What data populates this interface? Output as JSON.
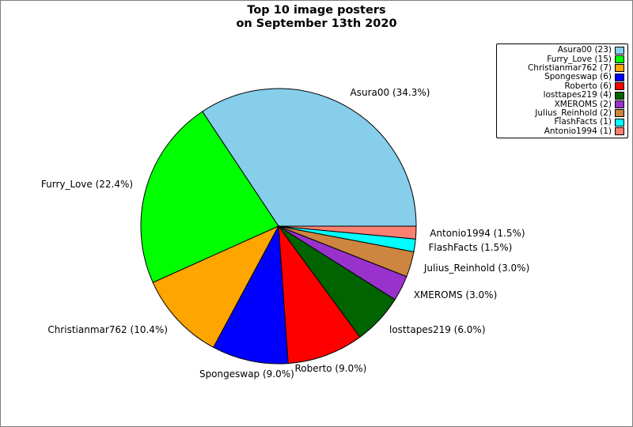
{
  "title": {
    "line1": "Top 10 image posters",
    "line2": "on September 13th 2020"
  },
  "chart_data": {
    "type": "pie",
    "title": "Top 10 image posters on September 13th 2020",
    "start_angle_deg": 0,
    "direction": "counterclockwise",
    "legend_position": "upper right",
    "label_distance": 1.1,
    "slices": [
      {
        "label": "Asura00",
        "count": 23,
        "pct": 34.3,
        "color": "#87CEEB",
        "wedge_label": "Asura00 (34.3%)",
        "legend_label": "Asura00 (23)"
      },
      {
        "label": "Furry_Love",
        "count": 15,
        "pct": 22.4,
        "color": "#00FF00",
        "wedge_label": "Furry_Love (22.4%)",
        "legend_label": "Furry_Love (15)"
      },
      {
        "label": "Christianmar762",
        "count": 7,
        "pct": 10.4,
        "color": "#FFA500",
        "wedge_label": "Christianmar762 (10.4%)",
        "legend_label": "Christianmar762 (7)"
      },
      {
        "label": "Spongeswap",
        "count": 6,
        "pct": 9.0,
        "color": "#0000FF",
        "wedge_label": "Spongeswap (9.0%)",
        "legend_label": "Spongeswap (6)"
      },
      {
        "label": "Roberto",
        "count": 6,
        "pct": 9.0,
        "color": "#FF0000",
        "wedge_label": "Roberto (9.0%)",
        "legend_label": "Roberto (6)"
      },
      {
        "label": "losttapes219",
        "count": 4,
        "pct": 6.0,
        "color": "#006400",
        "wedge_label": "losttapes219 (6.0%)",
        "legend_label": "losttapes219 (4)"
      },
      {
        "label": "XMEROMS",
        "count": 2,
        "pct": 3.0,
        "color": "#9932CC",
        "wedge_label": "XMEROMS (3.0%)",
        "legend_label": "XMEROMS (2)"
      },
      {
        "label": "Julius_Reinhold",
        "count": 2,
        "pct": 3.0,
        "color": "#CD853F",
        "wedge_label": "Julius_Reinhold (3.0%)",
        "legend_label": "Julius_Reinhold (2)"
      },
      {
        "label": "FlashFacts",
        "count": 1,
        "pct": 1.5,
        "color": "#00FFFF",
        "wedge_label": "FlashFacts (1.5%)",
        "legend_label": "FlashFacts (1)"
      },
      {
        "label": "Antonio1994",
        "count": 1,
        "pct": 1.5,
        "color": "#FA8072",
        "wedge_label": "Antonio1994 (1.5%)",
        "legend_label": "Antonio1994 (1)"
      }
    ]
  }
}
